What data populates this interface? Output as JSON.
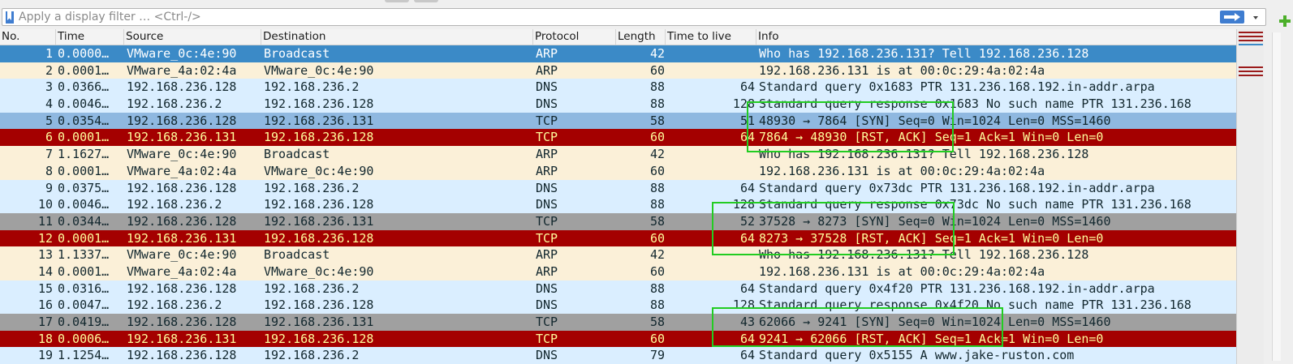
{
  "filter": {
    "placeholder": "Apply a display filter … <Ctrl-/>",
    "value": ""
  },
  "icons": {
    "bookmark": "bookmark-icon",
    "apply": "arrow-right-icon",
    "dropdown": "chevron-down-icon",
    "add": "plus-icon"
  },
  "columns": [
    "No.",
    "Time",
    "Source",
    "Destination",
    "Protocol",
    "Length",
    "Time to live",
    "Info"
  ],
  "colors": {
    "selected_bg": "#3b8ac7",
    "selected_fg": "#ffffff",
    "arp_bg": "#fbf0d8",
    "arp_fg": "#12272e",
    "dns_bg": "#daeeff",
    "dns_fg": "#12272e",
    "tcp_bg": "#a0a0a0",
    "tcp_fg": "#12272e",
    "tcp_sel_bg": "#8fb8e0",
    "rst_bg": "#a40000",
    "rst_fg": "#fffc9c",
    "highlight": "#22cc22"
  },
  "packets": [
    {
      "no": "1",
      "time": "0.0000…",
      "src": "VMware_0c:4e:90",
      "dst": "Broadcast",
      "proto": "ARP",
      "len": "42",
      "ttl": "",
      "info": "Who has 192.168.236.131? Tell 192.168.236.128",
      "style": "selected"
    },
    {
      "no": "2",
      "time": "0.0001…",
      "src": "VMware_4a:02:4a",
      "dst": "VMware_0c:4e:90",
      "proto": "ARP",
      "len": "60",
      "ttl": "",
      "info": "192.168.236.131 is at 00:0c:29:4a:02:4a",
      "style": "arp"
    },
    {
      "no": "3",
      "time": "0.0366…",
      "src": "192.168.236.128",
      "dst": "192.168.236.2",
      "proto": "DNS",
      "len": "88",
      "ttl": "64",
      "info": "Standard query 0x1683 PTR 131.236.168.192.in-addr.arpa",
      "style": "dns"
    },
    {
      "no": "4",
      "time": "0.0046…",
      "src": "192.168.236.2",
      "dst": "192.168.236.128",
      "proto": "DNS",
      "len": "88",
      "ttl": "128",
      "info": "Standard query response 0x1683 No such name PTR 131.236.168",
      "style": "dns"
    },
    {
      "no": "5",
      "time": "0.0354…",
      "src": "192.168.236.128",
      "dst": "192.168.236.131",
      "proto": "TCP",
      "len": "58",
      "ttl": "51",
      "info": "48930 → 7864 [SYN] Seq=0 Win=1024 Len=0 MSS=1460",
      "style": "tcpsel"
    },
    {
      "no": "6",
      "time": "0.0001…",
      "src": "192.168.236.131",
      "dst": "192.168.236.128",
      "proto": "TCP",
      "len": "60",
      "ttl": "64",
      "info": "7864 → 48930 [RST, ACK] Seq=1 Ack=1 Win=0 Len=0",
      "style": "rst"
    },
    {
      "no": "7",
      "time": "1.1627…",
      "src": "VMware_0c:4e:90",
      "dst": "Broadcast",
      "proto": "ARP",
      "len": "42",
      "ttl": "",
      "info": "Who has 192.168.236.131? Tell 192.168.236.128",
      "style": "arp"
    },
    {
      "no": "8",
      "time": "0.0001…",
      "src": "VMware_4a:02:4a",
      "dst": "VMware_0c:4e:90",
      "proto": "ARP",
      "len": "60",
      "ttl": "",
      "info": "192.168.236.131 is at 00:0c:29:4a:02:4a",
      "style": "arp"
    },
    {
      "no": "9",
      "time": "0.0375…",
      "src": "192.168.236.128",
      "dst": "192.168.236.2",
      "proto": "DNS",
      "len": "88",
      "ttl": "64",
      "info": "Standard query 0x73dc PTR 131.236.168.192.in-addr.arpa",
      "style": "dns"
    },
    {
      "no": "10",
      "time": "0.0046…",
      "src": "192.168.236.2",
      "dst": "192.168.236.128",
      "proto": "DNS",
      "len": "88",
      "ttl": "128",
      "info": "Standard query response 0x73dc No such name PTR 131.236.168",
      "style": "dns"
    },
    {
      "no": "11",
      "time": "0.0344…",
      "src": "192.168.236.128",
      "dst": "192.168.236.131",
      "proto": "TCP",
      "len": "58",
      "ttl": "52",
      "info": "37528 → 8273 [SYN] Seq=0 Win=1024 Len=0 MSS=1460",
      "style": "tcp"
    },
    {
      "no": "12",
      "time": "0.0001…",
      "src": "192.168.236.131",
      "dst": "192.168.236.128",
      "proto": "TCP",
      "len": "60",
      "ttl": "64",
      "info": "8273 → 37528 [RST, ACK] Seq=1 Ack=1 Win=0 Len=0",
      "style": "rst"
    },
    {
      "no": "13",
      "time": "1.1337…",
      "src": "VMware_0c:4e:90",
      "dst": "Broadcast",
      "proto": "ARP",
      "len": "42",
      "ttl": "",
      "info": "Who has 192.168.236.131? Tell 192.168.236.128",
      "style": "arp"
    },
    {
      "no": "14",
      "time": "0.0001…",
      "src": "VMware_4a:02:4a",
      "dst": "VMware_0c:4e:90",
      "proto": "ARP",
      "len": "60",
      "ttl": "",
      "info": "192.168.236.131 is at 00:0c:29:4a:02:4a",
      "style": "arp"
    },
    {
      "no": "15",
      "time": "0.0316…",
      "src": "192.168.236.128",
      "dst": "192.168.236.2",
      "proto": "DNS",
      "len": "88",
      "ttl": "64",
      "info": "Standard query 0x4f20 PTR 131.236.168.192.in-addr.arpa",
      "style": "dns"
    },
    {
      "no": "16",
      "time": "0.0047…",
      "src": "192.168.236.2",
      "dst": "192.168.236.128",
      "proto": "DNS",
      "len": "88",
      "ttl": "128",
      "info": "Standard query response 0x4f20 No such name PTR 131.236.168",
      "style": "dns"
    },
    {
      "no": "17",
      "time": "0.0419…",
      "src": "192.168.236.128",
      "dst": "192.168.236.131",
      "proto": "TCP",
      "len": "58",
      "ttl": "43",
      "info": "62066 → 9241 [SYN] Seq=0 Win=1024 Len=0 MSS=1460",
      "style": "tcp"
    },
    {
      "no": "18",
      "time": "0.0006…",
      "src": "192.168.236.131",
      "dst": "192.168.236.128",
      "proto": "TCP",
      "len": "60",
      "ttl": "64",
      "info": "9241 → 62066 [RST, ACK] Seq=1 Ack=1 Win=0 Len=0",
      "style": "rst"
    },
    {
      "no": "19",
      "time": "1.1254…",
      "src": "192.168.236.128",
      "dst": "192.168.236.2",
      "proto": "DNS",
      "len": "79",
      "ttl": "64",
      "info": "Standard query 0x5155 A www.jake-ruston.com",
      "style": "dns"
    }
  ]
}
